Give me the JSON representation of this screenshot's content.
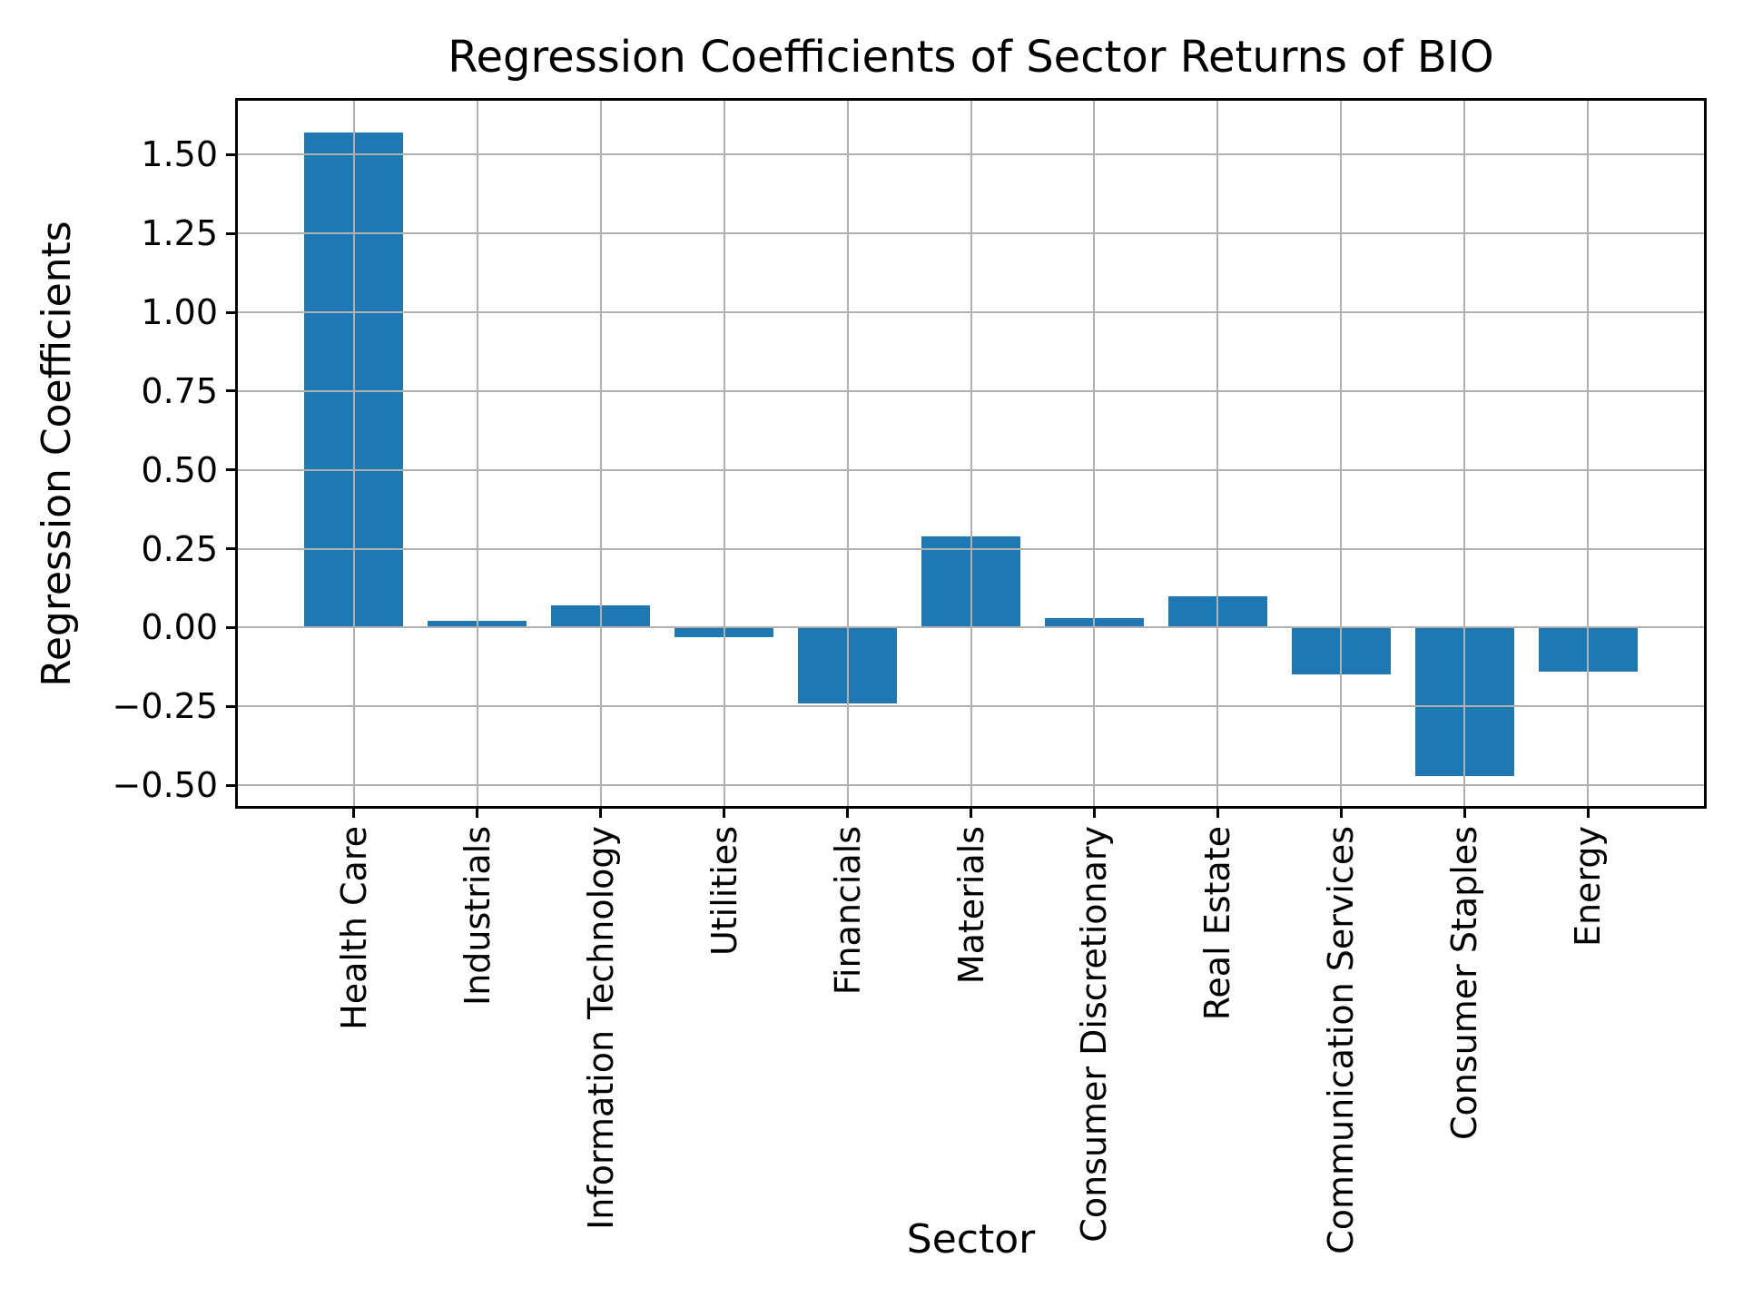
{
  "chart_data": {
    "type": "bar",
    "title": "Regression Coefficients of Sector Returns of BIO",
    "xlabel": "Sector",
    "ylabel": "Regression Coefficients",
    "categories": [
      "Health Care",
      "Industrials",
      "Information Technology",
      "Utilities",
      "Financials",
      "Materials",
      "Consumer Discretionary",
      "Real Estate",
      "Communication Services",
      "Consumer Staples",
      "Energy"
    ],
    "values": [
      1.57,
      0.02,
      0.07,
      -0.03,
      -0.24,
      0.29,
      0.03,
      0.1,
      -0.15,
      -0.47,
      -0.14
    ],
    "yticks": [
      {
        "label": "1.50",
        "value": 1.5
      },
      {
        "label": "1.25",
        "value": 1.25
      },
      {
        "label": "1.00",
        "value": 1.0
      },
      {
        "label": "0.75",
        "value": 0.75
      },
      {
        "label": "0.50",
        "value": 0.5
      },
      {
        "label": "0.25",
        "value": 0.25
      },
      {
        "label": "0.00",
        "value": 0.0
      },
      {
        "label": "−0.25",
        "value": -0.25
      },
      {
        "label": "−0.50",
        "value": -0.5
      }
    ],
    "ylim": [
      -0.566,
      1.671
    ],
    "grid": true,
    "legend": false,
    "colors": {
      "bar": "#1f77b4",
      "grid": "#b0b0b0",
      "spine": "#000000",
      "text": "#000000",
      "background": "#ffffff"
    }
  }
}
